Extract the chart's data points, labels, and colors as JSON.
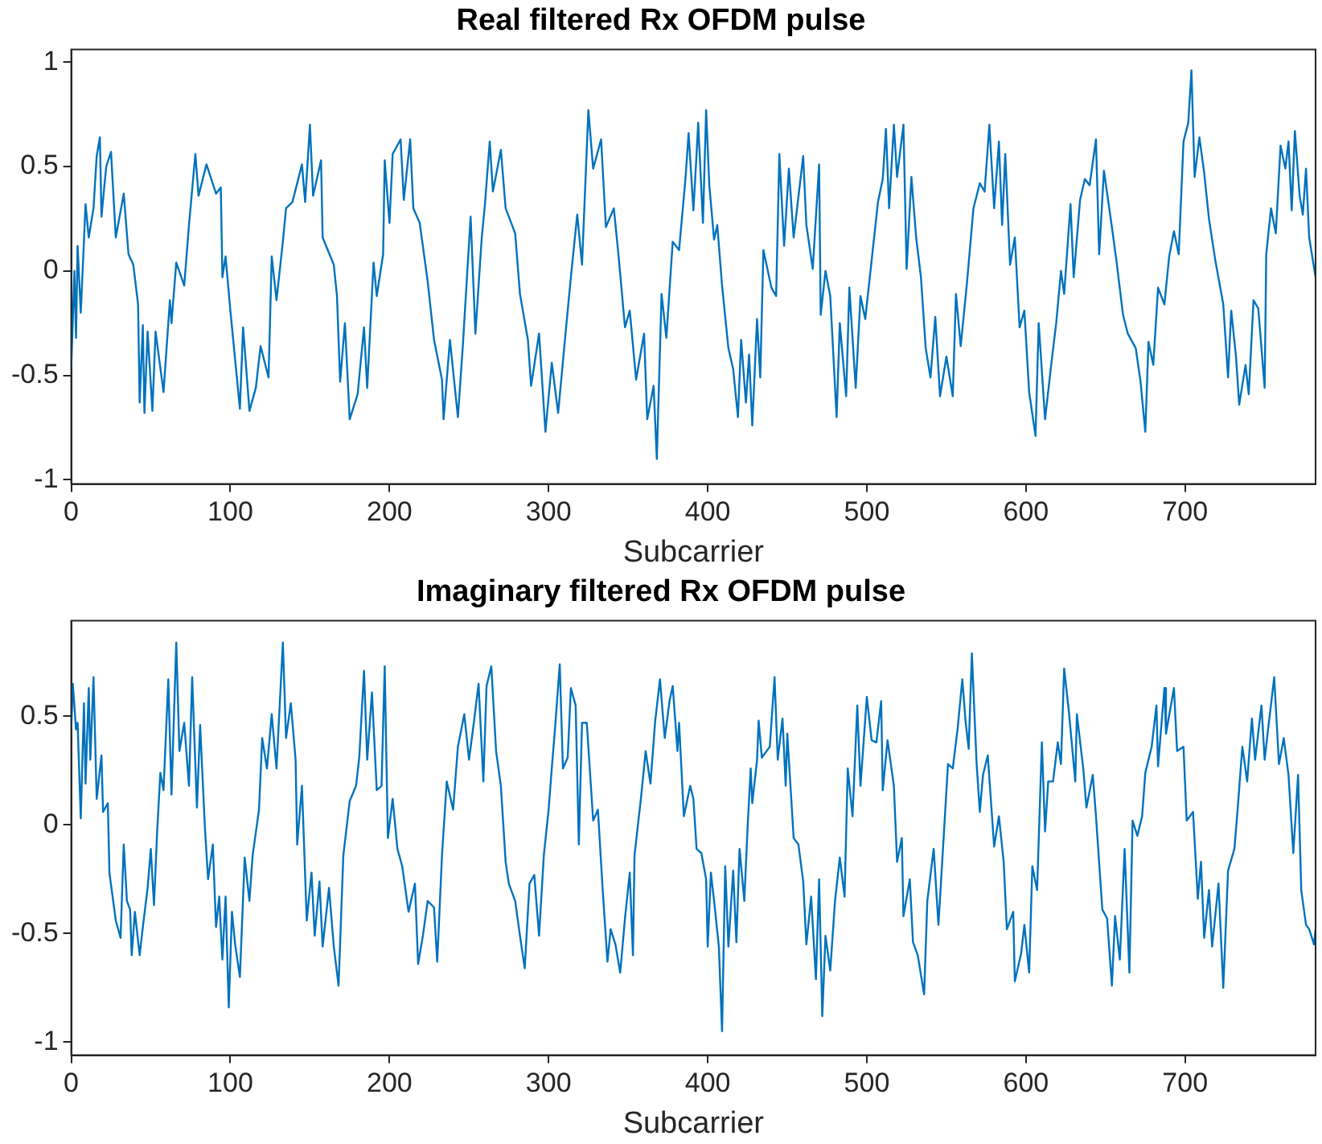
{
  "chart_data": [
    {
      "type": "line",
      "title": "Real filtered Rx OFDM pulse",
      "xlabel": "Subcarrier",
      "color": "#0072bd",
      "xlim": [
        0,
        782
      ],
      "xticks": [
        0,
        100,
        200,
        300,
        400,
        500,
        600,
        700
      ],
      "ylim": [
        -1.02,
        1.06
      ],
      "yticks": [
        -1,
        -0.5,
        0,
        0.5,
        1
      ],
      "grid": false,
      "legend": false,
      "marker": "none",
      "line_style": "solid",
      "x": [
        0,
        2,
        3,
        4,
        6,
        9,
        11,
        14,
        16,
        18,
        19,
        22,
        25,
        28,
        33,
        36,
        39,
        42,
        43,
        45,
        46,
        48,
        51,
        53,
        58,
        62,
        63,
        66,
        71,
        74,
        78,
        80,
        85,
        91,
        94,
        95,
        97,
        100,
        106,
        108,
        112,
        116,
        119,
        124,
        126,
        129,
        133,
        135,
        139,
        145,
        147,
        150,
        152,
        157,
        158,
        165,
        167,
        169,
        172,
        175,
        180,
        184,
        186,
        190,
        192,
        196,
        197,
        200,
        202,
        207,
        209,
        213,
        215,
        219,
        224,
        228,
        233,
        234,
        238,
        243,
        246,
        251,
        254,
        258,
        260,
        263,
        265,
        270,
        273,
        279,
        282,
        287,
        289,
        294,
        298,
        302,
        306,
        311,
        314,
        318,
        321,
        325,
        328,
        333,
        336,
        341,
        344,
        348,
        351,
        355,
        360,
        362,
        366,
        368,
        371,
        374,
        378,
        382,
        386,
        388,
        391,
        393,
        394,
        397,
        399,
        401,
        404,
        406,
        409,
        413,
        416,
        419,
        421,
        424,
        426,
        428,
        431,
        433,
        435,
        440,
        443,
        445,
        448,
        451,
        454,
        460,
        462,
        466,
        470,
        471,
        474,
        477,
        481,
        483,
        487,
        489,
        493,
        496,
        499,
        503,
        507,
        510,
        512,
        514,
        517,
        519,
        523,
        525,
        528,
        531,
        534,
        537,
        540,
        543,
        546,
        550,
        554,
        556,
        559,
        563,
        567,
        571,
        574,
        577,
        580,
        583,
        585,
        587,
        590,
        593,
        596,
        599,
        602,
        606,
        608,
        612,
        616,
        619,
        622,
        624,
        628,
        630,
        634,
        637,
        640,
        644,
        646,
        649,
        654,
        657,
        661,
        664,
        669,
        672,
        675,
        677,
        680,
        683,
        687,
        690,
        693,
        696,
        699,
        702,
        704,
        706,
        709,
        712,
        715,
        719,
        724,
        727,
        729,
        732,
        734,
        738,
        740,
        743,
        746,
        750,
        751,
        754,
        757,
        760,
        763,
        765,
        767,
        769,
        772,
        774,
        776,
        778,
        782
      ],
      "values": [
        -0.47,
        0,
        -0.32,
        0.12,
        -0.2,
        0.32,
        0.16,
        0.3,
        0.55,
        0.64,
        0.26,
        0.5,
        0.57,
        0.16,
        0.37,
        0.08,
        0.03,
        -0.16,
        -0.63,
        -0.26,
        -0.68,
        -0.29,
        -0.67,
        -0.29,
        -0.58,
        -0.14,
        -0.25,
        0.04,
        -0.07,
        0.22,
        0.56,
        0.36,
        0.51,
        0.37,
        0.4,
        -0.03,
        0.07,
        -0.19,
        -0.66,
        -0.27,
        -0.67,
        -0.56,
        -0.36,
        -0.51,
        0.07,
        -0.14,
        0.14,
        0.3,
        0.33,
        0.51,
        0.33,
        0.7,
        0.36,
        0.53,
        0.16,
        0.03,
        -0.12,
        -0.53,
        -0.25,
        -0.71,
        -0.59,
        -0.27,
        -0.56,
        0.04,
        -0.12,
        0.08,
        0.53,
        0.23,
        0.56,
        0.63,
        0.34,
        0.63,
        0.3,
        0.23,
        -0.05,
        -0.33,
        -0.52,
        -0.71,
        -0.33,
        -0.7,
        -0.37,
        0.26,
        -0.3,
        0.16,
        0.32,
        0.62,
        0.38,
        0.58,
        0.3,
        0.18,
        -0.11,
        -0.33,
        -0.55,
        -0.3,
        -0.77,
        -0.44,
        -0.68,
        -0.27,
        -0.03,
        0.27,
        0.03,
        0.77,
        0.49,
        0.63,
        0.21,
        0.3,
        0.07,
        -0.27,
        -0.19,
        -0.52,
        -0.3,
        -0.71,
        -0.55,
        -0.9,
        -0.11,
        -0.32,
        0.14,
        0.1,
        0.44,
        0.66,
        0.29,
        0.56,
        0.71,
        0.23,
        0.77,
        0.41,
        0.15,
        0.22,
        -0.07,
        -0.37,
        -0.47,
        -0.7,
        -0.33,
        -0.63,
        -0.4,
        -0.74,
        -0.23,
        -0.51,
        0.1,
        -0.08,
        -0.12,
        0.56,
        0.12,
        0.49,
        0.16,
        0.55,
        0.22,
        0.01,
        0.51,
        -0.21,
        0,
        -0.12,
        -0.7,
        -0.25,
        -0.6,
        -0.08,
        -0.56,
        -0.12,
        -0.23,
        0.05,
        0.33,
        0.44,
        0.68,
        0.3,
        0.7,
        0.45,
        0.7,
        0.01,
        0.45,
        0.16,
        -0.03,
        -0.37,
        -0.51,
        -0.22,
        -0.6,
        -0.41,
        -0.6,
        -0.11,
        -0.36,
        -0.05,
        0.3,
        0.42,
        0.38,
        0.7,
        0.3,
        0.62,
        0.22,
        0.56,
        0.03,
        0.16,
        -0.27,
        -0.19,
        -0.58,
        -0.79,
        -0.25,
        -0.71,
        -0.44,
        -0.25,
        0,
        -0.11,
        0.32,
        -0.03,
        0.34,
        0.44,
        0.41,
        0.63,
        0.08,
        0.48,
        0.21,
        0.04,
        -0.21,
        -0.3,
        -0.37,
        -0.53,
        -0.77,
        -0.34,
        -0.45,
        -0.08,
        -0.16,
        0.07,
        0.19,
        0.08,
        0.62,
        0.71,
        0.96,
        0.45,
        0.64,
        0.47,
        0.25,
        0.05,
        -0.16,
        -0.51,
        -0.19,
        -0.41,
        -0.64,
        -0.45,
        -0.59,
        -0.14,
        -0.18,
        -0.56,
        0.08,
        0.3,
        0.18,
        0.6,
        0.49,
        0.62,
        0.29,
        0.67,
        0.36,
        0.27,
        0.49,
        0.16,
        -0.03
      ]
    },
    {
      "type": "line",
      "title": "Imaginary filtered Rx OFDM pulse",
      "xlabel": "Subcarrier",
      "color": "#0072bd",
      "xlim": [
        0,
        782
      ],
      "xticks": [
        0,
        100,
        200,
        300,
        400,
        500,
        600,
        700
      ],
      "ylim": [
        -1.06,
        0.94
      ],
      "yticks": [
        -1,
        -0.5,
        0,
        0.5
      ],
      "grid": false,
      "legend": false,
      "marker": "none",
      "line_style": "solid",
      "x": [
        0,
        1,
        3,
        4,
        6,
        8,
        9,
        11,
        12,
        14,
        16,
        19,
        20,
        23,
        24,
        26,
        28,
        31,
        33,
        35,
        37,
        38,
        40,
        43,
        45,
        48,
        50,
        52,
        54,
        56,
        58,
        61,
        63,
        66,
        68,
        71,
        74,
        76,
        79,
        81,
        84,
        86,
        89,
        91,
        93,
        95,
        97,
        99,
        101,
        103,
        106,
        109,
        112,
        114,
        118,
        120,
        123,
        126,
        129,
        133,
        135,
        138,
        141,
        142,
        145,
        148,
        151,
        153,
        156,
        158,
        162,
        165,
        168,
        171,
        175,
        179,
        181,
        184,
        186,
        189,
        192,
        195,
        197,
        199,
        202,
        205,
        208,
        212,
        216,
        218,
        221,
        224,
        228,
        230,
        233,
        236,
        240,
        243,
        247,
        250,
        253,
        256,
        259,
        261,
        264,
        267,
        270,
        273,
        275,
        279,
        282,
        285,
        288,
        291,
        294,
        297,
        300,
        302,
        304,
        307,
        309,
        312,
        314,
        317,
        319,
        321,
        324,
        328,
        331,
        334,
        337,
        339,
        342,
        345,
        348,
        351,
        353,
        354,
        358,
        361,
        364,
        367,
        370,
        373,
        376,
        378,
        381,
        382,
        385,
        389,
        391,
        393,
        396,
        399,
        400,
        402,
        404,
        407,
        409,
        411,
        413,
        416,
        418,
        420,
        423,
        425,
        427,
        428,
        431,
        432,
        434,
        437,
        439,
        442,
        444,
        447,
        449,
        450,
        454,
        457,
        460,
        462,
        465,
        468,
        470,
        472,
        474,
        477,
        480,
        483,
        486,
        488,
        491,
        494,
        496,
        500,
        503,
        506,
        509,
        510,
        513,
        517,
        519,
        522,
        523,
        527,
        529,
        532,
        536,
        538,
        542,
        545,
        548,
        551,
        554,
        557,
        560,
        562,
        564,
        566,
        569,
        571,
        573,
        576,
        580,
        583,
        586,
        588,
        592,
        593,
        597,
        599,
        602,
        604,
        607,
        610,
        612,
        614,
        617,
        620,
        622,
        624,
        627,
        631,
        632,
        636,
        638,
        642,
        644,
        648,
        651,
        654,
        656,
        659,
        662,
        665,
        667,
        670,
        673,
        675,
        679,
        682,
        683,
        687,
        688,
        693,
        695,
        699,
        701,
        705,
        708,
        710,
        712,
        715,
        717,
        721,
        724,
        727,
        731,
        733,
        736,
        739,
        742,
        744,
        748,
        750,
        752,
        756,
        759,
        762,
        765,
        768,
        771,
        773,
        776,
        778,
        781,
        782
      ],
      "values": [
        0.44,
        0.65,
        0.44,
        0.47,
        0.03,
        0.56,
        0.19,
        0.63,
        0.3,
        0.68,
        0.12,
        0.32,
        0.06,
        0.1,
        -0.22,
        -0.33,
        -0.44,
        -0.52,
        -0.09,
        -0.35,
        -0.39,
        -0.6,
        -0.4,
        -0.6,
        -0.47,
        -0.29,
        -0.11,
        -0.37,
        -0.03,
        0.24,
        0.16,
        0.67,
        0.14,
        0.84,
        0.34,
        0.47,
        0.18,
        0.68,
        0.08,
        0.46,
        -0.01,
        -0.25,
        -0.09,
        -0.47,
        -0.33,
        -0.62,
        -0.33,
        -0.84,
        -0.4,
        -0.55,
        -0.7,
        -0.15,
        -0.35,
        -0.14,
        0.07,
        0.4,
        0.26,
        0.51,
        0.26,
        0.84,
        0.4,
        0.56,
        0.3,
        -0.09,
        0.18,
        -0.44,
        -0.22,
        -0.51,
        -0.26,
        -0.56,
        -0.29,
        -0.56,
        -0.74,
        -0.14,
        0.11,
        0.18,
        0.31,
        0.71,
        0.3,
        0.61,
        0.16,
        0.18,
        0.73,
        -0.06,
        0.12,
        -0.11,
        -0.19,
        -0.4,
        -0.27,
        -0.64,
        -0.51,
        -0.35,
        -0.38,
        -0.63,
        -0.14,
        0.2,
        0.07,
        0.36,
        0.51,
        0.3,
        0.47,
        0.65,
        0.2,
        0.64,
        0.73,
        0.34,
        0.18,
        -0.17,
        -0.27,
        -0.35,
        -0.51,
        -0.66,
        -0.27,
        -0.23,
        -0.51,
        -0.14,
        0.07,
        0.26,
        0.44,
        0.74,
        0.26,
        0.31,
        0.63,
        0.55,
        -0.09,
        0.47,
        0.47,
        0.02,
        0.07,
        -0.3,
        -0.63,
        -0.48,
        -0.55,
        -0.68,
        -0.43,
        -0.22,
        -0.6,
        -0.14,
        0.12,
        0.34,
        0.19,
        0.48,
        0.67,
        0.4,
        0.57,
        0.64,
        0.34,
        0.47,
        0.04,
        0.18,
        0.12,
        -0.11,
        -0.13,
        -0.25,
        -0.56,
        -0.22,
        -0.35,
        -0.56,
        -0.95,
        -0.19,
        -0.56,
        -0.21,
        -0.54,
        -0.11,
        -0.35,
        -0.02,
        0.26,
        0.1,
        0.3,
        0.48,
        0.31,
        0.34,
        0.36,
        0.68,
        0.3,
        0.49,
        0.18,
        0.42,
        -0.06,
        -0.09,
        -0.26,
        -0.55,
        -0.33,
        -0.71,
        -0.25,
        -0.88,
        -0.51,
        -0.67,
        -0.35,
        -0.15,
        -0.33,
        0.26,
        0.04,
        0.55,
        0.18,
        0.59,
        0.39,
        0.38,
        0.57,
        0.16,
        0.39,
        0.18,
        -0.17,
        -0.06,
        -0.42,
        -0.25,
        -0.54,
        -0.6,
        -0.78,
        -0.35,
        -0.11,
        -0.46,
        -0.09,
        0.28,
        0.26,
        0.44,
        0.67,
        0.48,
        0.35,
        0.79,
        0.28,
        0.06,
        0.23,
        0.32,
        -0.1,
        0.04,
        -0.17,
        -0.48,
        -0.4,
        -0.72,
        -0.59,
        -0.46,
        -0.68,
        -0.19,
        -0.3,
        0.38,
        -0.03,
        0.2,
        0.2,
        0.38,
        0.28,
        0.72,
        0.52,
        0.2,
        0.51,
        0.26,
        0.08,
        0.23,
        0.04,
        -0.39,
        -0.43,
        -0.74,
        -0.42,
        -0.62,
        -0.11,
        -0.68,
        0.02,
        -0.05,
        0.04,
        0.24,
        0.36,
        0.55,
        0.27,
        0.63,
        0.42,
        0.63,
        0.34,
        0.36,
        0.02,
        0.06,
        -0.34,
        -0.17,
        -0.52,
        -0.3,
        -0.56,
        -0.27,
        -0.75,
        -0.21,
        -0.11,
        0.07,
        0.36,
        0.2,
        0.49,
        0.3,
        0.55,
        0.3,
        0.43,
        0.68,
        0.28,
        0.4,
        0.23,
        -0.13,
        0.23,
        -0.3,
        -0.46,
        -0.48,
        -0.55,
        -0.48
      ]
    }
  ]
}
